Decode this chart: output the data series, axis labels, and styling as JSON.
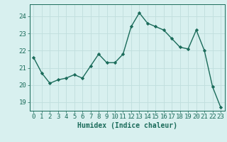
{
  "x": [
    0,
    1,
    2,
    3,
    4,
    5,
    6,
    7,
    8,
    9,
    10,
    11,
    12,
    13,
    14,
    15,
    16,
    17,
    18,
    19,
    20,
    21,
    22,
    23
  ],
  "y": [
    21.6,
    20.7,
    20.1,
    20.3,
    20.4,
    20.6,
    20.4,
    21.1,
    21.8,
    21.3,
    21.3,
    21.8,
    23.4,
    24.2,
    23.6,
    23.4,
    23.2,
    22.7,
    22.2,
    22.1,
    23.2,
    22.0,
    19.9,
    18.7
  ],
  "line_color": "#1a6b5a",
  "marker": "D",
  "marker_size": 2.2,
  "bg_color": "#d8f0ef",
  "grid_color": "#c0dedd",
  "tick_color": "#1a6b5a",
  "xlabel": "Humidex (Indice chaleur)",
  "ylim": [
    18.5,
    24.7
  ],
  "yticks": [
    19,
    20,
    21,
    22,
    23,
    24
  ],
  "xticks": [
    0,
    1,
    2,
    3,
    4,
    5,
    6,
    7,
    8,
    9,
    10,
    11,
    12,
    13,
    14,
    15,
    16,
    17,
    18,
    19,
    20,
    21,
    22,
    23
  ],
  "axis_color": "#1a6b5a",
  "linewidth": 1.0,
  "xlabel_fontsize": 7,
  "tick_fontsize": 6.5
}
